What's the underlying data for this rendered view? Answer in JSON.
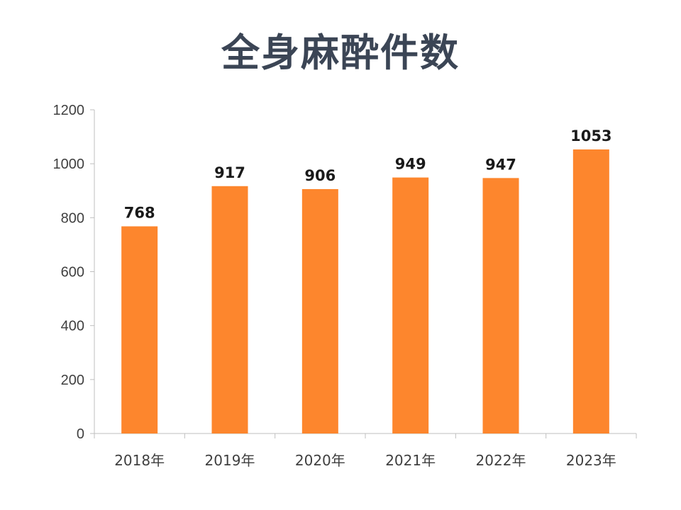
{
  "chart_data": {
    "type": "bar",
    "title": "全身麻酔件数",
    "categories": [
      "2018年",
      "2019年",
      "2020年",
      "2021年",
      "2022年",
      "2023年"
    ],
    "values": [
      768,
      917,
      906,
      949,
      947,
      1053
    ],
    "data_labels": [
      "768",
      "917",
      "906",
      "949",
      "947",
      "1053"
    ],
    "y_ticks": [
      "0",
      "200",
      "400",
      "600",
      "800",
      "1000",
      "1200"
    ],
    "ylim": [
      0,
      1200
    ],
    "xlabel": "",
    "ylabel": "",
    "grid": false,
    "legend": "none",
    "bar_color": "#fd862d",
    "axis_color": "#bfbfbf"
  }
}
